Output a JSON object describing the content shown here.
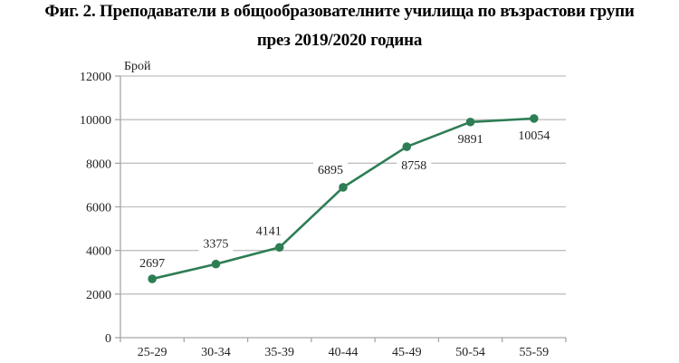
{
  "title": {
    "line1": "Фиг. 2. Преподаватели в общообразователните училища по възрастови групи",
    "line2": "през 2019/2020 година"
  },
  "chart_data": {
    "type": "line",
    "title": "Фиг. 2. Преподаватели в общообразователните училища по възрастови групи през 2019/2020 година",
    "xlabel": "",
    "ylabel": "Брой",
    "categories": [
      "25-29",
      "30-34",
      "35-39",
      "40-44",
      "45-49",
      "50-54",
      "55-59"
    ],
    "series": [
      {
        "name": "Преподаватели",
        "values": [
          2697,
          3375,
          4141,
          6895,
          8758,
          9891,
          10054
        ],
        "color": "#2e7d55"
      }
    ],
    "ylim": [
      0,
      12000
    ],
    "yticks": [
      0,
      2000,
      4000,
      6000,
      8000,
      10000,
      12000
    ],
    "grid": true,
    "legend": "none",
    "data_labels": true
  }
}
